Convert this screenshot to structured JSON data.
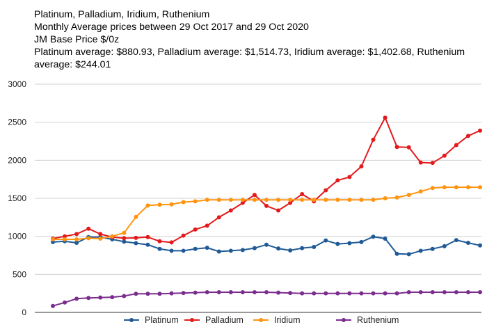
{
  "chart_data": {
    "type": "line",
    "title_lines": [
      "Platinum, Palladium, Iridium, Ruthenium",
      "Monthly Average prices between 29 Oct 2017 and 29 Oct 2020",
      "JM Base Price $/0z",
      "Platinum average: $880.93, Palladium average: $1,514.73, Iridium average: $1,402.68, Ruthenium average: $244.01"
    ],
    "ylim": [
      0,
      3000
    ],
    "yticks": [
      "0",
      "500",
      "1000",
      "1500",
      "2000",
      "2500",
      "3000"
    ],
    "grid": true,
    "legend_position": "bottom",
    "series": [
      {
        "name": "Platinum",
        "color": "#1f5a96",
        "values": [
          925,
          935,
          915,
          990,
          990,
          960,
          930,
          910,
          890,
          835,
          810,
          810,
          835,
          850,
          800,
          810,
          820,
          845,
          890,
          840,
          815,
          845,
          860,
          945,
          900,
          910,
          925,
          995,
          970,
          770,
          765,
          810,
          835,
          870,
          950,
          915,
          880
        ]
      },
      {
        "name": "Palladium",
        "color": "#e31a1c",
        "values": [
          970,
          1000,
          1030,
          1100,
          1030,
          990,
          975,
          980,
          990,
          935,
          920,
          1010,
          1090,
          1140,
          1250,
          1340,
          1440,
          1545,
          1400,
          1340,
          1440,
          1555,
          1460,
          1605,
          1735,
          1780,
          1920,
          2270,
          2560,
          2175,
          2170,
          1970,
          1965,
          2060,
          2200,
          2320,
          2390
        ]
      },
      {
        "name": "Iridium",
        "color": "#ff9410",
        "values": [
          960,
          960,
          960,
          975,
          970,
          1000,
          1045,
          1255,
          1405,
          1415,
          1420,
          1450,
          1460,
          1480,
          1480,
          1480,
          1480,
          1480,
          1480,
          1480,
          1480,
          1480,
          1480,
          1480,
          1480,
          1480,
          1480,
          1480,
          1500,
          1510,
          1545,
          1590,
          1635,
          1645,
          1645,
          1645,
          1645
        ]
      },
      {
        "name": "Ruthenium",
        "color": "#7b2d8e",
        "values": [
          85,
          130,
          180,
          190,
          195,
          200,
          215,
          245,
          245,
          245,
          250,
          255,
          260,
          265,
          265,
          265,
          265,
          265,
          265,
          260,
          255,
          250,
          250,
          250,
          250,
          250,
          250,
          250,
          250,
          250,
          265,
          265,
          265,
          265,
          265,
          265,
          265
        ]
      }
    ]
  }
}
